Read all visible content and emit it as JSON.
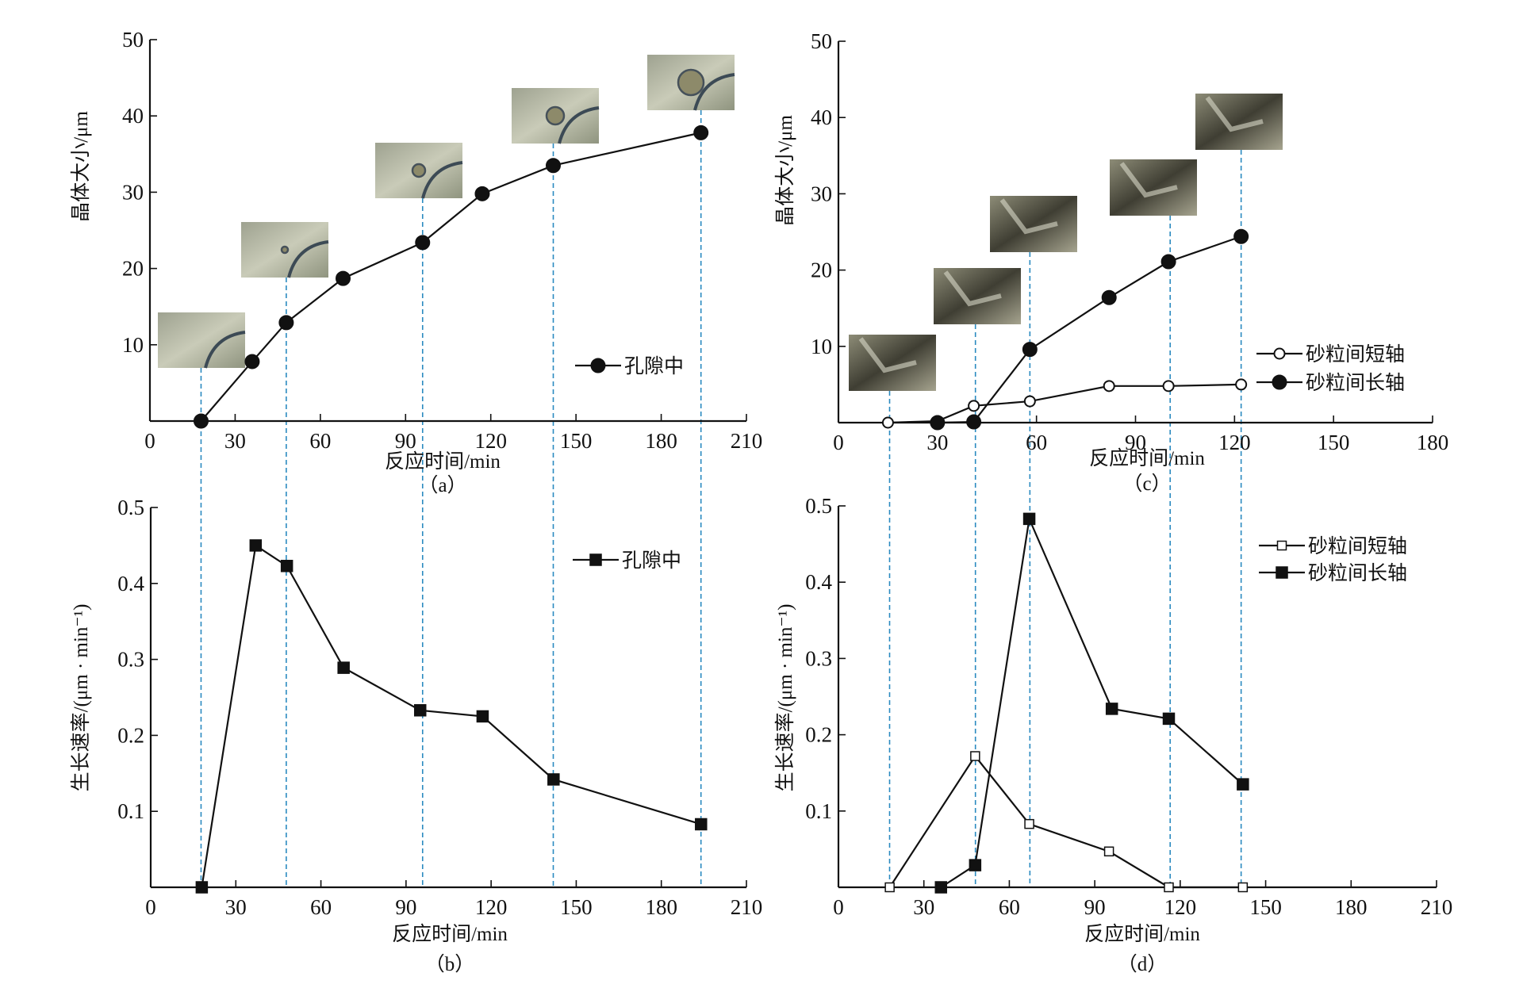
{
  "chart_data": [
    {
      "id": "a",
      "type": "line",
      "panel_label": "（a）",
      "xlabel": "反应时间/min",
      "ylabel": "晶体大小/μm",
      "xlim": [
        0,
        210
      ],
      "ylim": [
        0,
        50
      ],
      "xticks": [
        "0",
        "30",
        "60",
        "90",
        "120",
        "150",
        "180",
        "210"
      ],
      "yticks": [
        "10",
        "20",
        "30",
        "40",
        "50"
      ],
      "legend_position": "right",
      "reference_lines_x": [
        18,
        48,
        96,
        142,
        194
      ],
      "series": [
        {
          "name": "孔隙中",
          "marker": "filled-circle",
          "x": [
            18,
            36,
            48,
            68,
            96,
            117,
            142,
            194
          ],
          "y": [
            0,
            7.8,
            12.9,
            18.7,
            23.4,
            29.8,
            33.5,
            37.8
          ]
        }
      ]
    },
    {
      "id": "b",
      "type": "line",
      "panel_label": "（b）",
      "xlabel": "反应时间/min",
      "ylabel": "生长速率/(μm · min⁻¹)",
      "xlim": [
        0,
        210
      ],
      "ylim": [
        0,
        0.5
      ],
      "xticks": [
        "0",
        "30",
        "60",
        "90",
        "120",
        "150",
        "180",
        "210"
      ],
      "yticks": [
        "0.1",
        "0.2",
        "0.3",
        "0.4",
        "0.5"
      ],
      "legend_position": "top-right",
      "series": [
        {
          "name": "孔隙中",
          "marker": "filled-square",
          "x": [
            18,
            37,
            48,
            68,
            95,
            117,
            142,
            194
          ],
          "y": [
            0,
            0.45,
            0.423,
            0.289,
            0.233,
            0.225,
            0.142,
            0.083
          ]
        }
      ]
    },
    {
      "id": "c",
      "type": "line",
      "panel_label": "（c）",
      "xlabel": "反应时间/min",
      "ylabel": "晶体大小/μm",
      "xlim": [
        0,
        180
      ],
      "ylim": [
        0,
        50
      ],
      "xticks": [
        "0",
        "30",
        "60",
        "90",
        "120",
        "150",
        "180"
      ],
      "yticks": [
        "10",
        "20",
        "30",
        "40",
        "50"
      ],
      "legend_position": "right",
      "reference_lines_x": [
        15.5,
        41.5,
        58,
        100.5,
        122
      ],
      "series": [
        {
          "name": "砂粒间短轴",
          "marker": "open-circle",
          "x": [
            15,
            30,
            41,
            58,
            82,
            100,
            122
          ],
          "y": [
            0,
            0.2,
            2.2,
            2.8,
            4.8,
            4.8,
            5.0
          ]
        },
        {
          "name": "砂粒间长轴",
          "marker": "filled-circle",
          "x": [
            30,
            41,
            58,
            82,
            100,
            122
          ],
          "y": [
            0,
            0.1,
            9.6,
            16.4,
            21.1,
            24.4
          ]
        }
      ]
    },
    {
      "id": "d",
      "type": "line",
      "panel_label": "（d）",
      "xlabel": "反应时间/min",
      "ylabel": "生长速率/(μm · min⁻¹)",
      "xlim": [
        0,
        210
      ],
      "ylim": [
        0,
        0.5
      ],
      "xticks": [
        "0",
        "30",
        "60",
        "90",
        "120",
        "150",
        "180",
        "210"
      ],
      "yticks": [
        "0.1",
        "0.2",
        "0.3",
        "0.4",
        "0.5"
      ],
      "legend_position": "top-right",
      "series": [
        {
          "name": "砂粒间短轴",
          "marker": "open-square",
          "x": [
            18,
            48,
            67,
            95,
            116,
            142
          ],
          "y": [
            0,
            0.172,
            0.083,
            0.047,
            0,
            0
          ]
        },
        {
          "name": "砂粒间长轴",
          "marker": "filled-square",
          "x": [
            36,
            48,
            67,
            96,
            116,
            142
          ],
          "y": [
            0,
            0.029,
            0.483,
            0.234,
            0.221,
            0.135
          ]
        }
      ]
    }
  ],
  "colors": {
    "line": "#111111",
    "reference_line": "#2a8ac0",
    "photo_pore": "#b9bca7",
    "photo_sand": "#6f6d5a"
  }
}
